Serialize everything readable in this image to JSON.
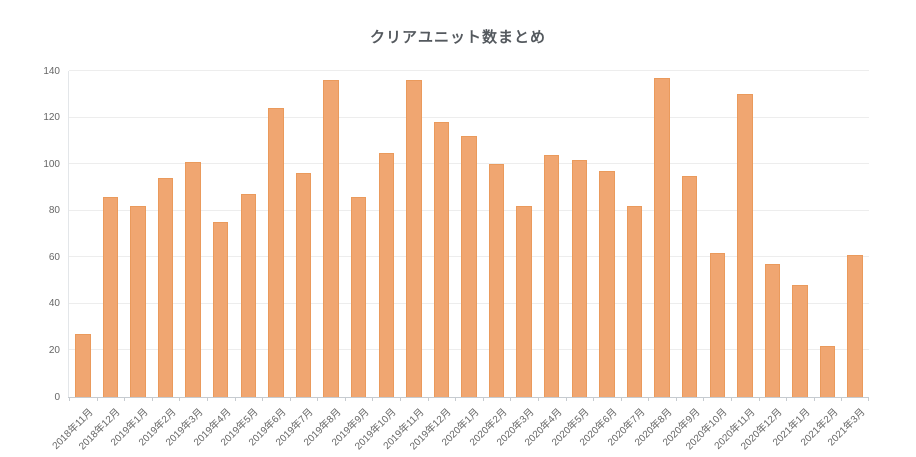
{
  "page": {
    "title": "クリアユニット数まとめ"
  },
  "chart_data": {
    "type": "bar",
    "title": "クリアユニット数まとめ",
    "categories": [
      "2018年11月",
      "2018年12月",
      "2019年1月",
      "2019年2月",
      "2019年3月",
      "2019年4月",
      "2019年5月",
      "2019年6月",
      "2019年7月",
      "2019年8月",
      "2019年9月",
      "2019年10月",
      "2019年11月",
      "2019年12月",
      "2020年1月",
      "2020年2月",
      "2020年3月",
      "2020年4月",
      "2020年5月",
      "2020年6月",
      "2020年7月",
      "2020年8月",
      "2020年9月",
      "2020年10月",
      "2020年11月",
      "2020年12月",
      "2021年1月",
      "2021年2月",
      "2021年3月"
    ],
    "values": [
      27,
      86,
      82,
      94,
      101,
      75,
      87,
      124,
      96,
      136,
      86,
      105,
      136,
      118,
      112,
      100,
      82,
      104,
      102,
      97,
      82,
      137,
      95,
      62,
      130,
      57,
      48,
      22,
      61
    ],
    "xlabel": "",
    "ylabel": "",
    "ylim": [
      0,
      140
    ],
    "yticks": [
      0,
      20,
      40,
      60,
      80,
      100,
      120,
      140
    ],
    "grid": true,
    "legend": "none",
    "colors": {
      "bar_fill": "#F0A671",
      "bar_border": "#EA9A5C",
      "title_text": "#54595E",
      "axis_text": "#666666",
      "gridline": "#EDEDED",
      "axis_line": "#C6CBD0",
      "background": "#FFFFFF"
    }
  }
}
